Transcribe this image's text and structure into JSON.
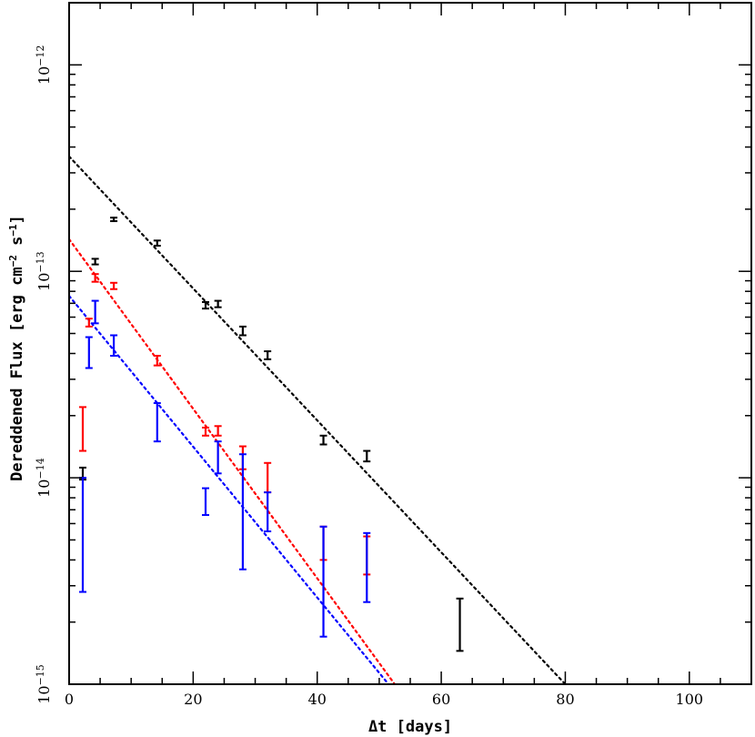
{
  "chart_data": {
    "type": "scatter",
    "xlabel": "Δt [days]",
    "ylabel_parts": {
      "main": "Dereddened Flux [erg cm",
      "exp1": "−2",
      "mid": " s",
      "exp2": "−1",
      "end": "]"
    },
    "xlim": [
      0,
      110
    ],
    "ylim": [
      1e-15,
      2e-12
    ],
    "yscale": "log",
    "x_ticks": [
      {
        "value": 0,
        "label": "0"
      },
      {
        "value": 20,
        "label": "20"
      },
      {
        "value": 40,
        "label": "40"
      },
      {
        "value": 60,
        "label": "60"
      },
      {
        "value": 80,
        "label": "80"
      },
      {
        "value": 100,
        "label": "100"
      }
    ],
    "y_ticks": [
      {
        "value": 1e-15,
        "base": "10",
        "exp": "−15"
      },
      {
        "value": 1e-14,
        "base": "10",
        "exp": "−14"
      },
      {
        "value": 1e-13,
        "base": "10",
        "exp": "−13"
      },
      {
        "value": 1e-12,
        "base": "10",
        "exp": "−12"
      }
    ],
    "grid": false,
    "series": [
      {
        "color": "#000000",
        "points": [
          {
            "x": 2.2,
            "lo": 9.8e-15,
            "hi": 1.12e-14
          },
          {
            "x": 4.2,
            "lo": 1.08e-13,
            "hi": 1.15e-13
          },
          {
            "x": 7.2,
            "lo": 1.75e-13,
            "hi": 1.82e-13
          },
          {
            "x": 14.2,
            "lo": 1.33e-13,
            "hi": 1.41e-13
          },
          {
            "x": 22.0,
            "lo": 6.6e-14,
            "hi": 7.1e-14
          },
          {
            "x": 24.0,
            "lo": 6.7e-14,
            "hi": 7.2e-14
          },
          {
            "x": 28.0,
            "lo": 4.9e-14,
            "hi": 5.4e-14
          },
          {
            "x": 32.0,
            "lo": 3.75e-14,
            "hi": 4.1e-14
          },
          {
            "x": 41.0,
            "lo": 1.45e-14,
            "hi": 1.6e-14
          },
          {
            "x": 48.0,
            "lo": 1.2e-14,
            "hi": 1.35e-14
          },
          {
            "x": 63.0,
            "lo": 1.45e-15,
            "hi": 2.6e-15
          }
        ],
        "fit": {
          "x": [
            0,
            80
          ],
          "y": [
            3.6e-13,
            1e-15
          ]
        }
      },
      {
        "color": "#ff0000",
        "points": [
          {
            "x": 2.2,
            "lo": 1.35e-14,
            "hi": 2.2e-14
          },
          {
            "x": 3.2,
            "lo": 5.4e-14,
            "hi": 5.9e-14
          },
          {
            "x": 4.2,
            "lo": 8.9e-14,
            "hi": 9.7e-14
          },
          {
            "x": 7.2,
            "lo": 8.2e-14,
            "hi": 8.8e-14
          },
          {
            "x": 14.2,
            "lo": 3.5e-14,
            "hi": 3.9e-14
          },
          {
            "x": 22.0,
            "lo": 1.6e-14,
            "hi": 1.75e-14
          },
          {
            "x": 24.0,
            "lo": 1.6e-14,
            "hi": 1.78e-14
          },
          {
            "x": 28.0,
            "lo": 1.1e-14,
            "hi": 1.42e-14
          },
          {
            "x": 32.0,
            "lo": 8.5e-15,
            "hi": 1.18e-14
          },
          {
            "x": 41.0,
            "lo": 4e-15,
            "hi": 5.8e-15
          },
          {
            "x": 48.0,
            "lo": 3.4e-15,
            "hi": 5.2e-15
          }
        ],
        "fit": {
          "x": [
            0,
            52.5
          ],
          "y": [
            1.43e-13,
            1e-15
          ]
        }
      },
      {
        "color": "#0000ff",
        "points": [
          {
            "x": 2.2,
            "lo": 2.8e-15,
            "hi": 1e-14
          },
          {
            "x": 3.2,
            "lo": 3.4e-14,
            "hi": 4.8e-14
          },
          {
            "x": 4.2,
            "lo": 5.6e-14,
            "hi": 7.2e-14
          },
          {
            "x": 7.2,
            "lo": 3.9e-14,
            "hi": 4.9e-14
          },
          {
            "x": 14.2,
            "lo": 1.5e-14,
            "hi": 2.3e-14
          },
          {
            "x": 22.0,
            "lo": 6.6e-15,
            "hi": 8.9e-15
          },
          {
            "x": 24.0,
            "lo": 1.05e-14,
            "hi": 1.5e-14
          },
          {
            "x": 28.0,
            "lo": 3.6e-15,
            "hi": 1.3e-14
          },
          {
            "x": 32.0,
            "lo": 5.5e-15,
            "hi": 8.5e-15
          },
          {
            "x": 41.0,
            "lo": 1.7e-15,
            "hi": 5.8e-15
          },
          {
            "x": 48.0,
            "lo": 2.5e-15,
            "hi": 5.4e-15
          }
        ],
        "fit": {
          "x": [
            0,
            51.5
          ],
          "y": [
            7.6e-14,
            1e-15
          ]
        }
      }
    ]
  }
}
